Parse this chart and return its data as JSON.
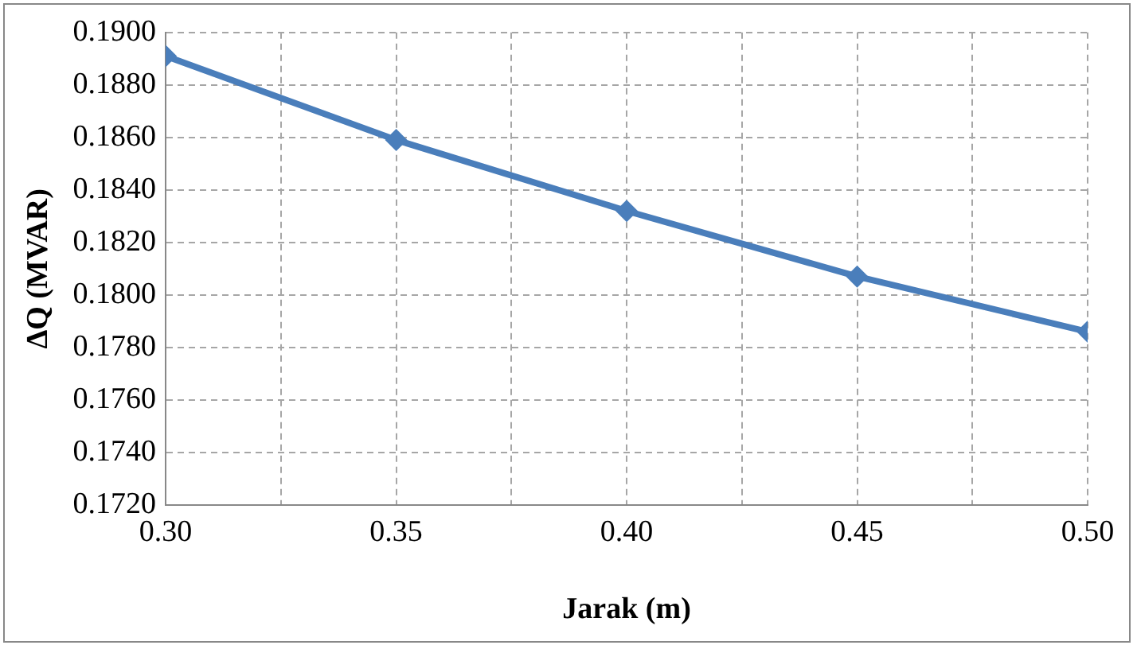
{
  "chart_data": {
    "type": "line",
    "xlabel": "Jarak (m)",
    "ylabel": "ΔQ (MVAR)",
    "x": [
      0.3,
      0.35,
      0.4,
      0.45,
      0.5
    ],
    "series": [
      {
        "color": "#4a7ebb",
        "values": [
          0.1891,
          0.1859,
          0.1832,
          0.1807,
          0.1786
        ]
      }
    ],
    "xlim": [
      0.3,
      0.5
    ],
    "xticks": [
      {
        "value": 0.3,
        "label": "0.30"
      },
      {
        "value": 0.325,
        "label": null
      },
      {
        "value": 0.35,
        "label": "0.35"
      },
      {
        "value": 0.375,
        "label": null
      },
      {
        "value": 0.4,
        "label": "0.40"
      },
      {
        "value": 0.425,
        "label": null
      },
      {
        "value": 0.45,
        "label": "0.45"
      },
      {
        "value": 0.475,
        "label": null
      },
      {
        "value": 0.5,
        "label": "0.50"
      }
    ],
    "ylim": [
      0.172,
      0.19
    ],
    "yticks": [
      {
        "value": 0.172,
        "label": "0.1720"
      },
      {
        "value": 0.174,
        "label": "0.1740"
      },
      {
        "value": 0.176,
        "label": "0.1760"
      },
      {
        "value": 0.178,
        "label": "0.1780"
      },
      {
        "value": 0.18,
        "label": "0.1800"
      },
      {
        "value": 0.182,
        "label": "0.1820"
      },
      {
        "value": 0.184,
        "label": "0.1840"
      },
      {
        "value": 0.186,
        "label": "0.1860"
      },
      {
        "value": 0.188,
        "label": "0.1880"
      },
      {
        "value": 0.19,
        "label": "0.1900"
      }
    ],
    "grid": true,
    "legend": false,
    "marker": "diamond",
    "line_style": "solid"
  }
}
